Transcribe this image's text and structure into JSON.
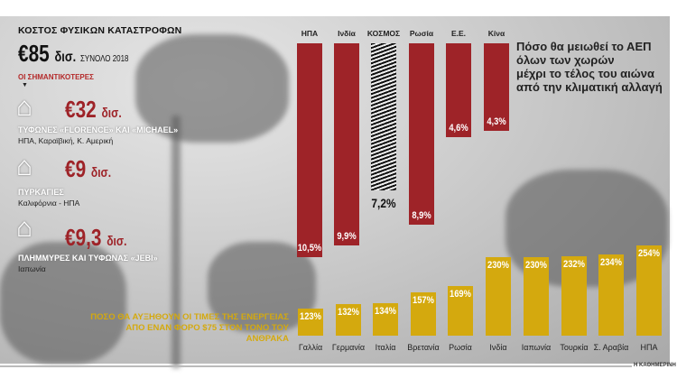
{
  "header": {
    "title": "ΚΟΣΤΟΣ ΦΥΣΙΚΩΝ ΚΑΤΑΣΤΡΟΦΩΝ",
    "total": "€85",
    "total_unit": "δισ.",
    "total_note": "ΣΥΝΟΛΟ 2018",
    "most_label": "ΟΙ ΣΗΜΑΝΤΙΚΟΤΕΡΕΣ"
  },
  "events": [
    {
      "icon": "tornado-house-icon",
      "amount": "€32",
      "unit": "δισ.",
      "name": "ΤΥΦΩΝΕΣ «FLORENCE» ΚΑΙ «MICHAEL»",
      "region": "ΗΠΑ, Καραϊβική, Κ. Αμερική"
    },
    {
      "icon": "burning-house-icon",
      "amount": "€9",
      "unit": "δισ.",
      "name": "ΠΥΡΚΑΓΙΕΣ",
      "region": "Καλιφόρνια - ΗΠΑ"
    },
    {
      "icon": "flooded-house-icon",
      "amount": "€9,3",
      "unit": "δισ.",
      "name": "ΠΛΗΜΜΥΡΕΣ ΚΑΙ ΤΥΦΩΝΑΣ «JEBI»",
      "region": "Ιαπωνία"
    }
  ],
  "source": "Η ΚΑΘΗΜΕΡΙΝΗ",
  "colors": {
    "gdp": "#9e2328",
    "energy": "#d4a90e"
  },
  "chart_data": [
    {
      "type": "bar",
      "title": "Πόσο θα μειωθεί το ΑΕΠ όλων των χωρών μέχρι το τέλος του αιώνα από την κλιματική αλλαγή",
      "title_lines": [
        "Πόσο θα μειωθεί το ΑΕΠ",
        "όλων των χωρών",
        "μέχρι το τέλος του αιώνα",
        "από την κλιματική αλλαγή"
      ],
      "categories": [
        "ΗΠΑ",
        "Ινδία",
        "ΚΟΣΜΟΣ",
        "Ρωσία",
        "Ε.Ε.",
        "Κίνα"
      ],
      "values": [
        10.5,
        9.9,
        7.2,
        8.9,
        4.6,
        4.3
      ],
      "labels": [
        "10,5%",
        "9,9%",
        "7,2%",
        "8,9%",
        "4,6%",
        "4,3%"
      ],
      "orientation": "downward",
      "unit": "%"
    },
    {
      "type": "bar",
      "title": "ΠΟΣΟ ΘΑ ΑΥΞΗΘΟΥΝ ΟΙ ΤΙΜΕΣ ΤΗΣ ΕΝΕΡΓΕΙΑΣ ΑΠΟ ΕΝΑΝ ΦΟΡΟ $75 ΣΤΟΝ ΤΟΝΟ ΤΟΥ ΑΝΘΡΑΚΑ",
      "title_lines": [
        "ΠΟΣΟ ΘΑ ΑΥΞΗΘΟΥΝ ΟΙ ΤΙΜΕΣ ΤΗΣ ΕΝΕΡΓΕΙΑΣ",
        "ΑΠΟ ΕΝΑΝ ΦΟΡΟ $75 ΣΤΟΝ ΤΟΝΟ ΤΟΥ ΑΝΘΡΑΚΑ"
      ],
      "categories": [
        "Γαλλία",
        "Γερμανία",
        "Ιταλία",
        "Βρετανία",
        "Ρωσία",
        "Ινδία",
        "Ιαπωνία",
        "Τουρκία",
        "Σ. Αραβία",
        "ΗΠΑ"
      ],
      "values": [
        123,
        132,
        134,
        157,
        169,
        230,
        230,
        232,
        234,
        254
      ],
      "labels": [
        "123%",
        "132%",
        "134%",
        "157%",
        "169%",
        "230%",
        "230%",
        "232%",
        "234%",
        "254%"
      ],
      "unit": "%"
    }
  ]
}
